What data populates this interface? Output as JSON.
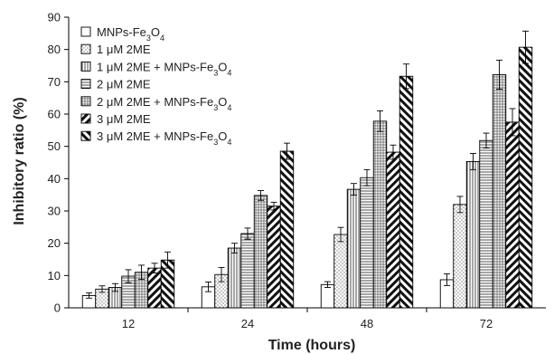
{
  "chart_data": {
    "type": "bar",
    "xlabel": "Time (hours)",
    "ylabel": "Inhibitory ratio (%)",
    "ylim": [
      0,
      90
    ],
    "yticks": [
      0,
      10,
      20,
      30,
      40,
      50,
      60,
      70,
      80,
      90
    ],
    "categories": [
      "12",
      "24",
      "48",
      "72"
    ],
    "legend_position": "top-left",
    "grid": false,
    "series": [
      {
        "name": "MNPs-Fe3O4",
        "label_main": "MNPs-Fe",
        "label_sub1": "3",
        "label_mid": "O",
        "label_sub2": "4",
        "pattern": "blank",
        "values": [
          3.8,
          6.5,
          7.2,
          8.7
        ],
        "errors": [
          0.8,
          1.5,
          0.9,
          1.8
        ]
      },
      {
        "name": "1 μM 2ME",
        "label_main": "1 μM 2ME",
        "pattern": "dots",
        "values": [
          5.8,
          10.3,
          22.7,
          32.0
        ],
        "errors": [
          1.0,
          2.2,
          2.2,
          2.5
        ]
      },
      {
        "name": "1 μM 2ME + MNPs-Fe3O4",
        "label_main": "1 μM 2ME + MNPs-Fe",
        "label_sub1": "3",
        "label_mid": "O",
        "label_sub2": "4",
        "pattern": "vlines",
        "values": [
          6.3,
          18.5,
          36.7,
          45.3
        ],
        "errors": [
          1.2,
          1.5,
          1.8,
          2.5
        ]
      },
      {
        "name": "2 μM 2ME",
        "label_main": "2 μM 2ME",
        "pattern": "hlines",
        "values": [
          9.8,
          23.0,
          40.3,
          51.8
        ],
        "errors": [
          2.0,
          1.7,
          2.5,
          2.3
        ]
      },
      {
        "name": "2 μM 2ME + MNPs-Fe3O4",
        "label_main": "2 μM 2ME + MNPs-Fe",
        "label_sub1": "3",
        "label_mid": "O",
        "label_sub2": "4",
        "pattern": "grid",
        "values": [
          11.0,
          34.8,
          57.8,
          72.2
        ],
        "errors": [
          2.2,
          1.5,
          3.2,
          4.5
        ]
      },
      {
        "name": "3 μM 2ME",
        "label_main": "3 μM 2ME",
        "pattern": "back-diag",
        "values": [
          12.3,
          31.5,
          48.2,
          57.5
        ],
        "errors": [
          1.5,
          1.2,
          2.2,
          4.2
        ]
      },
      {
        "name": "3 μM 2ME + MNPs-Fe3O4",
        "label_main": "3 μM 2ME + MNPs-Fe",
        "label_sub1": "3",
        "label_mid": "O",
        "label_sub2": "4",
        "pattern": "fwd-diag",
        "values": [
          14.8,
          48.5,
          71.7,
          80.7
        ],
        "errors": [
          2.5,
          2.5,
          3.8,
          5.0
        ]
      }
    ]
  }
}
